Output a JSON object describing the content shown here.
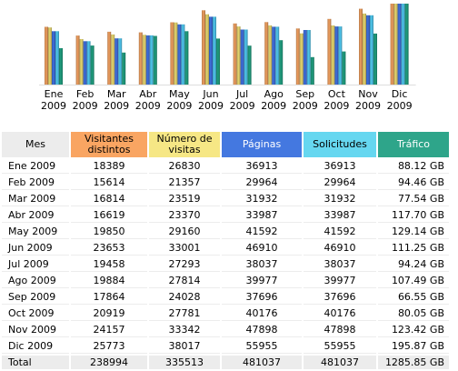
{
  "chart_data": {
    "type": "bar",
    "categories": [
      {
        "month": "Ene",
        "year": "2009"
      },
      {
        "month": "Feb",
        "year": "2009"
      },
      {
        "month": "Mar",
        "year": "2009"
      },
      {
        "month": "Abr",
        "year": "2009"
      },
      {
        "month": "May",
        "year": "2009"
      },
      {
        "month": "Jun",
        "year": "2009"
      },
      {
        "month": "Jul",
        "year": "2009"
      },
      {
        "month": "Ago",
        "year": "2009"
      },
      {
        "month": "Sep",
        "year": "2009"
      },
      {
        "month": "Oct",
        "year": "2009"
      },
      {
        "month": "Nov",
        "year": "2009"
      },
      {
        "month": "Dic",
        "year": "2009"
      }
    ],
    "series": [
      {
        "name": "Visitantes distintos",
        "color": "#f0a060",
        "values": [
          18389,
          15614,
          16814,
          16619,
          19850,
          23653,
          19458,
          19884,
          17864,
          20919,
          24157,
          25773
        ]
      },
      {
        "name": "Número de visitas",
        "color": "#e8d870",
        "values": [
          26830,
          21357,
          23519,
          23370,
          29160,
          33001,
          27293,
          27814,
          24028,
          27781,
          33342,
          38017
        ]
      },
      {
        "name": "Páginas",
        "color": "#4070e0",
        "values": [
          36913,
          29964,
          31932,
          33987,
          41592,
          46910,
          38037,
          39977,
          37696,
          40176,
          47898,
          55955
        ]
      },
      {
        "name": "Solicitudes",
        "color": "#50c8f0",
        "values": [
          36913,
          29964,
          31932,
          33987,
          41592,
          46910,
          38037,
          39977,
          37696,
          40176,
          47898,
          55955
        ]
      },
      {
        "name": "Tráfico",
        "color": "#20a080",
        "values": [
          88.12,
          94.46,
          77.54,
          117.7,
          129.14,
          111.25,
          94.24,
          107.49,
          66.55,
          80.05,
          123.42,
          195.87
        ]
      }
    ]
  },
  "table": {
    "headers": [
      {
        "label": "Mes",
        "bg": "#ececec"
      },
      {
        "label": "Visitantes distintos",
        "bg": "#f9a562"
      },
      {
        "label": "Número de visitas",
        "bg": "#f6e785"
      },
      {
        "label": "Páginas",
        "bg": "#4478e0",
        "color": "#ffffff"
      },
      {
        "label": "Solicitudes",
        "bg": "#66d7f0"
      },
      {
        "label": "Tráfico",
        "bg": "#2ea58a",
        "color": "#ffffff"
      }
    ],
    "rows": [
      {
        "month": "Ene 2009",
        "visitors": "18389",
        "visits": "26830",
        "pages": "36913",
        "hits": "36913",
        "bandwidth": "88.12 GB"
      },
      {
        "month": "Feb 2009",
        "visitors": "15614",
        "visits": "21357",
        "pages": "29964",
        "hits": "29964",
        "bandwidth": "94.46 GB"
      },
      {
        "month": "Mar 2009",
        "visitors": "16814",
        "visits": "23519",
        "pages": "31932",
        "hits": "31932",
        "bandwidth": "77.54 GB"
      },
      {
        "month": "Abr 2009",
        "visitors": "16619",
        "visits": "23370",
        "pages": "33987",
        "hits": "33987",
        "bandwidth": "117.70 GB"
      },
      {
        "month": "May 2009",
        "visitors": "19850",
        "visits": "29160",
        "pages": "41592",
        "hits": "41592",
        "bandwidth": "129.14 GB"
      },
      {
        "month": "Jun 2009",
        "visitors": "23653",
        "visits": "33001",
        "pages": "46910",
        "hits": "46910",
        "bandwidth": "111.25 GB"
      },
      {
        "month": "Jul 2009",
        "visitors": "19458",
        "visits": "27293",
        "pages": "38037",
        "hits": "38037",
        "bandwidth": "94.24 GB"
      },
      {
        "month": "Ago 2009",
        "visitors": "19884",
        "visits": "27814",
        "pages": "39977",
        "hits": "39977",
        "bandwidth": "107.49 GB"
      },
      {
        "month": "Sep 2009",
        "visitors": "17864",
        "visits": "24028",
        "pages": "37696",
        "hits": "37696",
        "bandwidth": "66.55 GB"
      },
      {
        "month": "Oct 2009",
        "visitors": "20919",
        "visits": "27781",
        "pages": "40176",
        "hits": "40176",
        "bandwidth": "80.05 GB"
      },
      {
        "month": "Nov 2009",
        "visitors": "24157",
        "visits": "33342",
        "pages": "47898",
        "hits": "47898",
        "bandwidth": "123.42 GB"
      },
      {
        "month": "Dic 2009",
        "visitors": "25773",
        "visits": "38017",
        "pages": "55955",
        "hits": "55955",
        "bandwidth": "195.87 GB"
      }
    ],
    "total": {
      "month": "Total",
      "visitors": "238994",
      "visits": "335513",
      "pages": "481037",
      "hits": "481037",
      "bandwidth": "1285.85 GB"
    }
  }
}
